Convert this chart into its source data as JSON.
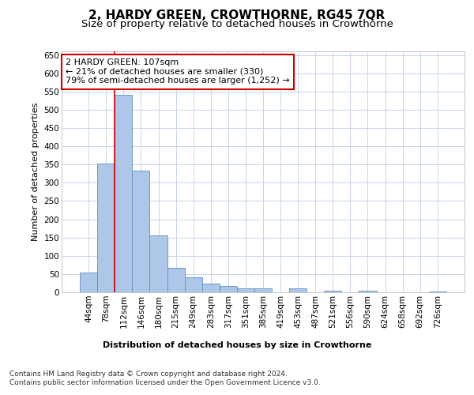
{
  "title": "2, HARDY GREEN, CROWTHORNE, RG45 7QR",
  "subtitle": "Size of property relative to detached houses in Crowthorne",
  "xlabel": "Distribution of detached houses by size in Crowthorne",
  "ylabel": "Number of detached properties",
  "categories": [
    "44sqm",
    "78sqm",
    "112sqm",
    "146sqm",
    "180sqm",
    "215sqm",
    "249sqm",
    "283sqm",
    "317sqm",
    "351sqm",
    "385sqm",
    "419sqm",
    "453sqm",
    "487sqm",
    "521sqm",
    "556sqm",
    "590sqm",
    "624sqm",
    "658sqm",
    "692sqm",
    "726sqm"
  ],
  "values": [
    55,
    353,
    540,
    333,
    155,
    68,
    42,
    24,
    17,
    10,
    10,
    0,
    10,
    0,
    5,
    0,
    5,
    0,
    0,
    0,
    3
  ],
  "bar_color": "#aec6e8",
  "bar_edge_color": "#5b8ec4",
  "highlight_line_color": "#cc0000",
  "annotation_text": "2 HARDY GREEN: 107sqm\n← 21% of detached houses are smaller (330)\n79% of semi-detached houses are larger (1,252) →",
  "annotation_box_color": "#cc0000",
  "ylim": [
    0,
    660
  ],
  "yticks": [
    0,
    50,
    100,
    150,
    200,
    250,
    300,
    350,
    400,
    450,
    500,
    550,
    600,
    650
  ],
  "footer_line1": "Contains HM Land Registry data © Crown copyright and database right 2024.",
  "footer_line2": "Contains public sector information licensed under the Open Government Licence v3.0.",
  "bg_color": "#ffffff",
  "grid_color": "#c8d4e8",
  "title_fontsize": 11,
  "subtitle_fontsize": 9.5,
  "axis_label_fontsize": 8,
  "tick_fontsize": 7.5,
  "annotation_fontsize": 8,
  "footer_fontsize": 6.5
}
